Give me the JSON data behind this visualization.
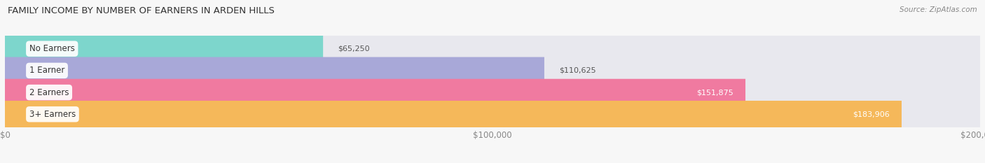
{
  "title": "FAMILY INCOME BY NUMBER OF EARNERS IN ARDEN HILLS",
  "source": "Source: ZipAtlas.com",
  "categories": [
    "No Earners",
    "1 Earner",
    "2 Earners",
    "3+ Earners"
  ],
  "values": [
    65250,
    110625,
    151875,
    183906
  ],
  "bar_colors": [
    "#7dd6cc",
    "#a8a8d8",
    "#f07aa0",
    "#f5b85a"
  ],
  "bar_bg_color": "#e8e8ee",
  "background_color": "#f7f7f7",
  "xlim": [
    0,
    200000
  ],
  "xticks": [
    0,
    100000,
    200000
  ],
  "xtick_labels": [
    "$0",
    "$100,000",
    "$200,000"
  ],
  "value_inside": [
    false,
    false,
    true,
    true
  ],
  "figsize": [
    14.06,
    2.33
  ],
  "dpi": 100
}
